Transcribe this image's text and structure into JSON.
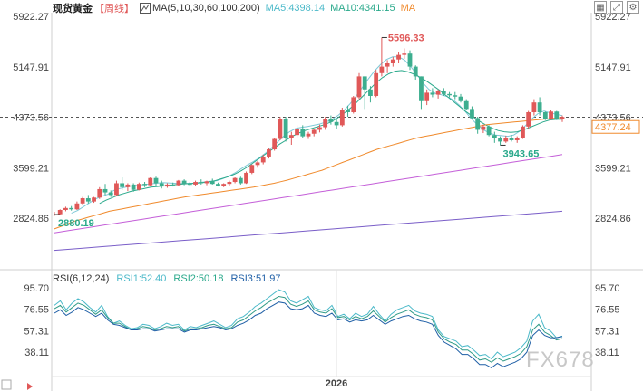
{
  "header": {
    "symbol": "现货黄金",
    "period": "【周线】",
    "ma_label": "MA(5,10,30,60,100,200)",
    "ma5": "MA5:4398.14",
    "ma10": "MA10:4341.15",
    "ma_extra": "MA"
  },
  "rsi_header": {
    "label": "RSI(6,12,24)",
    "rsi1": "RSI1:52.40",
    "rsi2": "RSI2:50.18",
    "rsi3": "RSI3:51.97"
  },
  "colors": {
    "up": "#e05858",
    "down": "#3dae8f",
    "ma5": "#7fc9d8",
    "ma10": "#2aa98b",
    "ma30": "#f08a2c",
    "ma60": "#c45fd8",
    "ma100": "#7a5ec8",
    "rsi1": "#4bb9c9",
    "rsi2": "#2f9a86",
    "rsi3": "#1f5fa6",
    "current": "#f08a2c"
  },
  "chart_data": [
    {
      "type": "candlestick",
      "title": "现货黄金",
      "y_ticks": [
        "5922.27",
        "5147.91",
        "4373.56",
        "3599.21",
        "2824.86"
      ],
      "y_right_ticks": [
        "5922.27",
        "5147.91",
        "4373.56",
        "3599.21",
        "2824.86"
      ],
      "ylim": [
        2600,
        6000
      ],
      "grid": false,
      "annotations": {
        "high": {
          "label": "5596.33",
          "value": 5596.33
        },
        "low": {
          "label": "3943.65",
          "value": 3943.65
        },
        "start": {
          "label": "2880.19",
          "value": 2880.19
        },
        "current": {
          "label": "4377.24",
          "value": 4377.24
        },
        "crosshair": 4373.56
      },
      "ohlc": [
        [
          2880,
          2920,
          2860,
          2880
        ],
        [
          2885,
          2960,
          2870,
          2950
        ],
        [
          2950,
          3000,
          2930,
          2980
        ],
        [
          2980,
          3010,
          2940,
          2960
        ],
        [
          2960,
          3080,
          2950,
          3050
        ],
        [
          3050,
          3150,
          3030,
          3130
        ],
        [
          3130,
          3180,
          3050,
          3080
        ],
        [
          3080,
          3150,
          3060,
          3140
        ],
        [
          3140,
          3300,
          3120,
          3270
        ],
        [
          3270,
          3350,
          3180,
          3220
        ],
        [
          3220,
          3250,
          3150,
          3180
        ],
        [
          3180,
          3400,
          3170,
          3360
        ],
        [
          3360,
          3450,
          3260,
          3300
        ],
        [
          3300,
          3360,
          3240,
          3340
        ],
        [
          3340,
          3360,
          3230,
          3260
        ],
        [
          3260,
          3370,
          3250,
          3350
        ],
        [
          3350,
          3380,
          3300,
          3330
        ],
        [
          3330,
          3450,
          3310,
          3440
        ],
        [
          3440,
          3460,
          3320,
          3360
        ],
        [
          3360,
          3400,
          3280,
          3310
        ],
        [
          3310,
          3360,
          3290,
          3340
        ],
        [
          3340,
          3370,
          3310,
          3330
        ],
        [
          3330,
          3410,
          3320,
          3400
        ],
        [
          3400,
          3420,
          3330,
          3350
        ],
        [
          3350,
          3380,
          3310,
          3340
        ],
        [
          3340,
          3400,
          3320,
          3380
        ],
        [
          3380,
          3420,
          3340,
          3360
        ],
        [
          3360,
          3400,
          3330,
          3390
        ],
        [
          3390,
          3430,
          3340,
          3350
        ],
        [
          3350,
          3370,
          3310,
          3320
        ],
        [
          3320,
          3360,
          3300,
          3350
        ],
        [
          3350,
          3400,
          3320,
          3380
        ],
        [
          3380,
          3450,
          3360,
          3440
        ],
        [
          3440,
          3460,
          3340,
          3360
        ],
        [
          3360,
          3540,
          3350,
          3520
        ],
        [
          3520,
          3650,
          3500,
          3640
        ],
        [
          3640,
          3700,
          3600,
          3680
        ],
        [
          3680,
          3800,
          3650,
          3770
        ],
        [
          3770,
          3900,
          3740,
          3880
        ],
        [
          3880,
          4060,
          3860,
          4040
        ],
        [
          4040,
          4380,
          4020,
          4350
        ],
        [
          4350,
          4380,
          4000,
          4050
        ],
        [
          4050,
          4150,
          3950,
          4100
        ],
        [
          4100,
          4250,
          4060,
          4200
        ],
        [
          4200,
          4250,
          4050,
          4080
        ],
        [
          4080,
          4150,
          4040,
          4120
        ],
        [
          4120,
          4200,
          4080,
          4180
        ],
        [
          4180,
          4260,
          4140,
          4220
        ],
        [
          4220,
          4380,
          4180,
          4350
        ],
        [
          4350,
          4400,
          4260,
          4300
        ],
        [
          4300,
          4360,
          4200,
          4250
        ],
        [
          4250,
          4520,
          4230,
          4480
        ],
        [
          4480,
          4550,
          4380,
          4450
        ],
        [
          4450,
          4700,
          4430,
          4680
        ],
        [
          4680,
          5050,
          4650,
          5000
        ],
        [
          5000,
          5000,
          4500,
          4800
        ],
        [
          4800,
          4850,
          4600,
          4700
        ],
        [
          4700,
          5100,
          4680,
          5050
        ],
        [
          5050,
          5596.33,
          5000,
          5150
        ],
        [
          5150,
          5250,
          5050,
          5200
        ],
        [
          5200,
          5300,
          5150,
          5260
        ],
        [
          5260,
          5380,
          5200,
          5330
        ],
        [
          5330,
          5430,
          5270,
          5350
        ],
        [
          5350,
          5400,
          5100,
          5150
        ],
        [
          5150,
          5170,
          4950,
          5000
        ],
        [
          5000,
          5000,
          4500,
          4620
        ],
        [
          4620,
          4800,
          4560,
          4750
        ],
        [
          4750,
          4820,
          4680,
          4720
        ],
        [
          4720,
          4800,
          4660,
          4770
        ],
        [
          4770,
          4820,
          4700,
          4730
        ],
        [
          4730,
          4760,
          4680,
          4710
        ],
        [
          4710,
          4760,
          4650,
          4690
        ],
        [
          4690,
          4730,
          4600,
          4620
        ],
        [
          4620,
          4650,
          4480,
          4500
        ],
        [
          4500,
          4540,
          4340,
          4360
        ],
        [
          4360,
          4380,
          4120,
          4180
        ],
        [
          4180,
          4260,
          4130,
          4230
        ],
        [
          4230,
          4250,
          4080,
          4100
        ],
        [
          4100,
          4150,
          3980,
          4050
        ],
        [
          4050,
          4080,
          3943.65,
          4000
        ],
        [
          4000,
          4090,
          3980,
          4060
        ],
        [
          4060,
          4100,
          4000,
          4020
        ],
        [
          4020,
          4080,
          3980,
          4060
        ],
        [
          4060,
          4250,
          4040,
          4230
        ],
        [
          4230,
          4470,
          4200,
          4450
        ],
        [
          4450,
          4650,
          4400,
          4600
        ],
        [
          4600,
          4680,
          4400,
          4450
        ],
        [
          4450,
          4460,
          4330,
          4350
        ],
        [
          4350,
          4480,
          4330,
          4460
        ],
        [
          4460,
          4470,
          4330,
          4350
        ],
        [
          4350,
          4400,
          4300,
          4377.24
        ]
      ],
      "ma_series": [
        {
          "name": "MA5",
          "color_key": "ma5",
          "from": 3,
          "values": [
            2900,
            2940,
            3000,
            3060,
            3120,
            3160,
            3190,
            3250,
            3280,
            3300,
            3320,
            3330,
            3340,
            3350,
            3360,
            3370,
            3365,
            3360,
            3355,
            3355,
            3360,
            3370,
            3380,
            3390,
            3400,
            3430,
            3470,
            3520,
            3580,
            3640,
            3690,
            3750,
            3820,
            3900,
            3990,
            4080,
            4150,
            4200,
            4220,
            4230,
            4250,
            4270,
            4300,
            4340,
            4400,
            4480,
            4580,
            4700,
            4830,
            4960,
            5080,
            5180,
            5260,
            5300,
            5300,
            5250,
            5150,
            5030,
            4900,
            4800,
            4740,
            4720,
            4690,
            4640,
            4560,
            4460,
            4350,
            4260,
            4180,
            4130,
            4100,
            4090,
            4080,
            4100,
            4160,
            4250,
            4350,
            4430,
            4470,
            4440,
            4420,
            4398.14
          ]
        },
        {
          "name": "MA10",
          "color_key": "ma10",
          "from": 8,
          "values": [
            3050,
            3100,
            3140,
            3180,
            3210,
            3240,
            3260,
            3280,
            3300,
            3310,
            3320,
            3330,
            3340,
            3350,
            3355,
            3360,
            3370,
            3380,
            3400,
            3430,
            3460,
            3500,
            3550,
            3610,
            3680,
            3750,
            3820,
            3890,
            3960,
            4020,
            4080,
            4130,
            4170,
            4200,
            4230,
            4260,
            4300,
            4360,
            4430,
            4510,
            4600,
            4700,
            4800,
            4900,
            4980,
            5040,
            5080,
            5090,
            5070,
            5030,
            4980,
            4920,
            4850,
            4780,
            4700,
            4620,
            4540,
            4460,
            4390,
            4320,
            4260,
            4210,
            4170,
            4150,
            4140,
            4150,
            4180,
            4220,
            4260,
            4300,
            4330,
            4340,
            4341.15
          ]
        },
        {
          "name": "MA30",
          "color_key": "ma30",
          "from": 0,
          "values": [
            2660,
            2700,
            2740,
            2780,
            2810,
            2840,
            2870,
            2900,
            2930,
            2950,
            2970,
            2990,
            3010,
            3030,
            3050,
            3070,
            3090,
            3110,
            3130,
            3150,
            3165,
            3180,
            3195,
            3210,
            3225,
            3240,
            3255,
            3270,
            3285,
            3300,
            3320,
            3340,
            3360,
            3385,
            3410,
            3440,
            3470,
            3500,
            3530,
            3560,
            3600,
            3640,
            3680,
            3720,
            3760,
            3800,
            3840,
            3880,
            3910,
            3940,
            3970,
            4000,
            4030,
            4060,
            4080,
            4100,
            4120,
            4140,
            4160,
            4180,
            4200,
            4220,
            4240,
            4260,
            4270,
            4280,
            4290,
            4300,
            4310,
            4320,
            4330,
            4340,
            4350,
            4360,
            4370
          ]
        },
        {
          "name": "MA60",
          "color_key": "ma60",
          "from": 0,
          "values": [
            2600,
            2630,
            2660,
            2690,
            2720,
            2750,
            2780,
            2810,
            2840,
            2870,
            2900,
            2930,
            2960,
            2990,
            3020,
            3050,
            3080,
            3110,
            3140,
            3170,
            3200,
            3230,
            3260,
            3290,
            3320,
            3350,
            3380,
            3410,
            3440,
            3470,
            3500,
            3530,
            3560,
            3590,
            3620,
            3650,
            3680,
            3710,
            3740,
            3770,
            3800
          ]
        },
        {
          "name": "MA100",
          "color_key": "ma100",
          "from": 0,
          "values": [
            2330,
            2360,
            2390,
            2420,
            2450,
            2480,
            2510,
            2540,
            2570,
            2600,
            2630,
            2660,
            2690,
            2720,
            2750,
            2780,
            2810,
            2840,
            2870,
            2900,
            2930
          ]
        }
      ]
    },
    {
      "type": "line",
      "title": "RSI(6,12,24)",
      "y_ticks": [
        "95.70",
        "76.55",
        "57.31",
        "38.11"
      ],
      "ylim": [
        20,
        100
      ],
      "x_label": "2026",
      "series": [
        {
          "name": "RSI1",
          "color_key": "rsi1",
          "values": [
            80,
            84,
            76,
            82,
            86,
            83,
            78,
            74,
            80,
            70,
            64,
            66,
            62,
            59,
            60,
            63,
            62,
            59,
            61,
            64,
            62,
            63,
            58,
            61,
            60,
            62,
            64,
            66,
            63,
            60,
            62,
            68,
            70,
            74,
            79,
            82,
            86,
            90,
            94,
            92,
            84,
            82,
            85,
            88,
            78,
            76,
            75,
            80,
            70,
            72,
            68,
            73,
            70,
            72,
            79,
            72,
            66,
            72,
            76,
            78,
            80,
            75,
            73,
            72,
            70,
            58,
            52,
            50,
            48,
            43,
            44,
            40,
            35,
            36,
            32,
            38,
            34,
            36,
            38,
            42,
            48,
            66,
            72,
            60,
            57,
            51,
            52.4
          ]
        },
        {
          "name": "RSI2",
          "color_key": "rsi2",
          "values": [
            77,
            80,
            74,
            78,
            82,
            80,
            76,
            72,
            76,
            69,
            64,
            64,
            61,
            58,
            59,
            61,
            60,
            58,
            59,
            61,
            60,
            61,
            57,
            59,
            59,
            60,
            62,
            63,
            61,
            59,
            60,
            65,
            67,
            71,
            75,
            78,
            82,
            85,
            88,
            87,
            81,
            79,
            81,
            84,
            76,
            74,
            73,
            77,
            69,
            70,
            67,
            70,
            68,
            70,
            75,
            70,
            65,
            69,
            72,
            74,
            76,
            72,
            70,
            69,
            67,
            56,
            50,
            47,
            45,
            40,
            40,
            36,
            31,
            32,
            29,
            33,
            30,
            32,
            34,
            37,
            43,
            58,
            63,
            56,
            53,
            49,
            50.18
          ]
        },
        {
          "name": "RSI3",
          "color_key": "rsi3",
          "values": [
            73,
            76,
            71,
            74,
            78,
            76,
            73,
            70,
            73,
            67,
            63,
            62,
            60,
            58,
            58,
            59,
            59,
            57,
            58,
            59,
            59,
            59,
            56,
            58,
            58,
            59,
            60,
            61,
            60,
            58,
            59,
            62,
            64,
            67,
            71,
            73,
            77,
            80,
            83,
            82,
            77,
            76,
            77,
            80,
            73,
            71,
            70,
            73,
            67,
            68,
            65,
            67,
            66,
            67,
            71,
            67,
            63,
            66,
            68,
            70,
            71,
            68,
            66,
            65,
            63,
            53,
            47,
            44,
            41,
            36,
            36,
            32,
            27,
            27,
            24,
            28,
            25,
            27,
            29,
            32,
            38,
            53,
            58,
            53,
            51,
            51,
            51.97
          ]
        }
      ]
    }
  ],
  "watermark": "FX678"
}
